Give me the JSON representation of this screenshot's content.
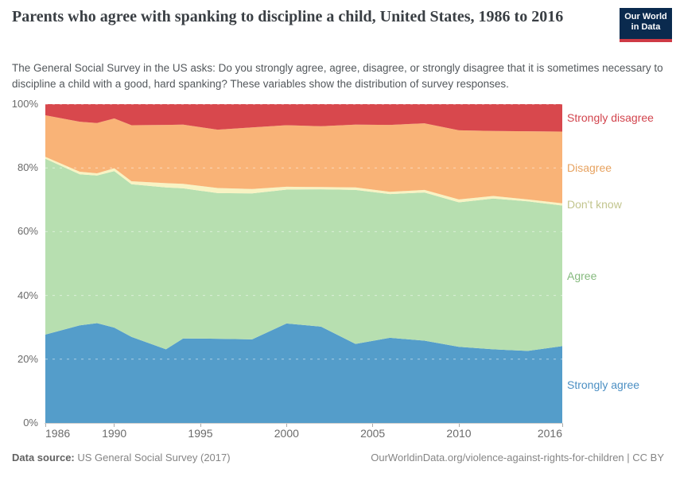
{
  "header": {
    "title": "Parents who agree with spanking to discipline a child, United States, 1986 to 2016",
    "logo": {
      "line1": "Our World",
      "line2": "in Data",
      "bg_color": "#0a2a4e",
      "accent_color": "#cf3a45",
      "text_color": "#ffffff"
    }
  },
  "subtitle": "The General Social Survey in the US asks: Do you strongly agree, agree, disagree, or strongly disagree that it is sometimes necessary to discipline a child with a good, hard spanking? These variables show the distribution of survey responses.",
  "chart_data": {
    "type": "area",
    "stacked": true,
    "x": [
      1986,
      1988,
      1989,
      1990,
      1991,
      1993,
      1994,
      1996,
      1998,
      2000,
      2002,
      2004,
      2006,
      2008,
      2010,
      2012,
      2014,
      2016
    ],
    "series": [
      {
        "name": "Strongly agree",
        "color": "#549dca",
        "label_color": "#4b8fc3",
        "values": [
          27.7,
          30.6,
          31.3,
          29.9,
          27.0,
          23.1,
          26.5,
          26.4,
          26.2,
          31.2,
          30.2,
          24.8,
          26.7,
          25.8,
          23.9,
          23.1,
          22.6,
          24.1
        ]
      },
      {
        "name": "Agree",
        "color": "#b7dfb0",
        "label_color": "#85ba7e",
        "values": [
          55.2,
          47.4,
          46.3,
          49.1,
          47.9,
          50.8,
          47.1,
          45.7,
          45.8,
          42.0,
          43.1,
          48.3,
          45.1,
          46.5,
          45.3,
          47.3,
          46.9,
          44.1
        ]
      },
      {
        "name": "Don't know",
        "color": "#f8f3c3",
        "label_color": "#c2c58e",
        "values": [
          0.6,
          0.8,
          0.7,
          0.9,
          0.9,
          1.3,
          1.4,
          1.6,
          1.4,
          0.9,
          0.7,
          0.8,
          0.7,
          0.8,
          0.9,
          0.8,
          0.6,
          0.7
        ]
      },
      {
        "name": "Disagree",
        "color": "#f9b377",
        "label_color": "#e7a25f",
        "values": [
          13.0,
          15.7,
          15.8,
          15.6,
          17.6,
          18.3,
          18.6,
          18.3,
          19.3,
          19.3,
          19.1,
          19.7,
          21.0,
          20.9,
          21.7,
          20.4,
          21.4,
          22.5
        ]
      },
      {
        "name": "Strongly disagree",
        "color": "#d8484d",
        "label_color": "#d2444d",
        "values": [
          3.5,
          5.5,
          5.9,
          4.5,
          6.6,
          6.5,
          6.4,
          8.0,
          7.3,
          6.6,
          6.9,
          6.4,
          6.5,
          6.0,
          8.2,
          8.4,
          8.5,
          8.6
        ]
      }
    ],
    "ylim": [
      0,
      100
    ],
    "y_ticks": [
      "0%",
      "20%",
      "40%",
      "60%",
      "80%",
      "100%"
    ],
    "x_ticks": [
      1986,
      1990,
      1995,
      2000,
      2005,
      2010,
      2016
    ],
    "grid": true,
    "gridline_style": "dashed",
    "legend_position": "right-inline-labels"
  },
  "footer": {
    "source_label": "Data source:",
    "source_value": "US General Social Survey (2017)",
    "credit": "OurWorldinData.org/violence-against-rights-for-children | CC BY"
  }
}
